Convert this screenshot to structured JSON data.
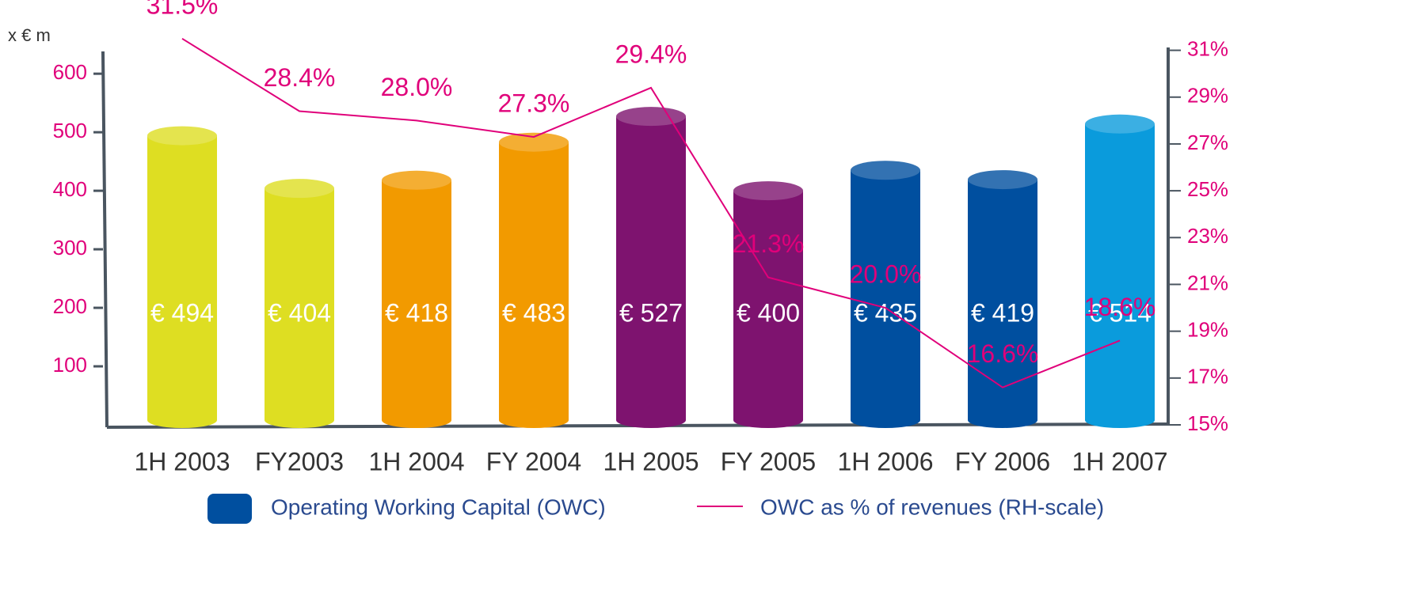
{
  "chart_data": {
    "type": "bar",
    "y_axis_label": "x € m",
    "categories": [
      "1H 2003",
      "FY2003",
      "1H 2004",
      "FY 2004",
      "1H 2005",
      "FY 2005",
      "1H 2006",
      "FY 2006",
      "1H 2007"
    ],
    "series": [
      {
        "name": "Operating Working Capital (OWC)",
        "type": "bar",
        "color": "#004f9f",
        "colors": [
          "#dede22",
          "#dede22",
          "#f29a00",
          "#f29a00",
          "#7e136f",
          "#7e136f",
          "#004f9f",
          "#004f9f",
          "#0a9bdc"
        ],
        "values": [
          494,
          404,
          418,
          483,
          527,
          400,
          435,
          419,
          514
        ],
        "value_labels": [
          "€ 494",
          "€ 404",
          "€ 418",
          "€ 483",
          "€ 527",
          "€ 400",
          "€ 435",
          "€ 419",
          "€ 514"
        ]
      },
      {
        "name": "OWC as % of revenues (RH-scale)",
        "type": "line",
        "axis": "y2",
        "color": "#e0007a",
        "values": [
          31.5,
          28.4,
          28.0,
          27.3,
          29.4,
          21.3,
          20.0,
          16.6,
          18.6
        ],
        "value_labels": [
          "31.5%",
          "28.4%",
          "28.0%",
          "27.3%",
          "29.4%",
          "21.3%",
          "20.0%",
          "16.6%",
          "18.6%"
        ]
      }
    ],
    "ylim": [
      0,
      680
    ],
    "yticks": [
      100,
      200,
      300,
      400,
      500,
      600
    ],
    "y2lim": [
      15,
      32
    ],
    "y2ticks": [
      {
        "value": 15,
        "label": "15%"
      },
      {
        "value": 17,
        "label": "17%"
      },
      {
        "value": 19,
        "label": "19%"
      },
      {
        "value": 21,
        "label": "21%"
      },
      {
        "value": 23,
        "label": "23%"
      },
      {
        "value": 25,
        "label": "25%"
      },
      {
        "value": 27,
        "label": "27%"
      },
      {
        "value": 29,
        "label": "29%"
      },
      {
        "value": 31,
        "label": "31%"
      }
    ],
    "grid": false
  }
}
